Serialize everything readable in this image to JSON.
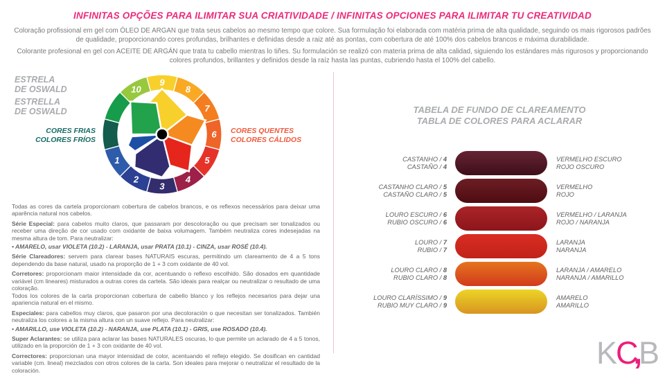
{
  "title": "INFINITAS OPÇÕES PARA ILIMITAR SUA CRIATIVIDADE / INFINITAS OPCIONES PARA ILIMITAR TU CREATIVIDAD",
  "title_color": "#ec2a7c",
  "intro": {
    "pt": "Coloração profissional em gel com ÓLEO DE ARGAN que trata seus cabelos ao mesmo tempo que colore. Sua formulação foi elaborada com matéria prima de alta qualidade, seguindo os mais rigorosos padrões de qualidade, proporcionando cores profundas, brilhantes e definidas desde a raiz até as pontas, com cobertura de até 100% dos cabelos brancos e máxima durabilidade.",
    "es": "Colorante profesional en gel con ACEITE DE ARGÁN que trata tu cabello mientras lo tiñes. Su formulación se realizó con materia prima de alta calidad, siguiendo los estándares más rigurosos y proporcionando colores profundos, brillantes y definidos desde la raíz hasta las puntas, cubriendo hasta el 100% del cabello."
  },
  "wheel": {
    "heading_pt": [
      "ESTRELA",
      "DE OSWALD"
    ],
    "heading_es": [
      "ESTRELLA",
      "DE OSWALD"
    ],
    "cool": {
      "pt": "CORES FRIAS",
      "es": "COLORES FRÍOS",
      "color": "#156a64"
    },
    "warm": {
      "pt": "CORES QUENTES",
      "es": "COLORES CÁLIDOS",
      "color": "#f0583a"
    },
    "segments": [
      {
        "label": "9",
        "color": "#f8d02c"
      },
      {
        "label": "8",
        "color": "#f9a924"
      },
      {
        "label": "7",
        "color": "#f47d20"
      },
      {
        "label": "6",
        "color": "#ef6428"
      },
      {
        "label": "5",
        "color": "#e6332a"
      },
      {
        "label": "4",
        "color": "#9c2048"
      },
      {
        "label": "3",
        "color": "#332c6d"
      },
      {
        "label": "2",
        "color": "#2c4094"
      },
      {
        "label": "1",
        "color": "#2e5caa"
      },
      {
        "label": "",
        "color": "#145c4d"
      },
      {
        "label": "",
        "color": "#169c4a"
      },
      {
        "label": "10",
        "color": "#97c83e"
      }
    ],
    "star": {
      "green": "#22a24b",
      "yellow": "#f8d02c",
      "orange": "#f58a20",
      "red": "#e6251c",
      "blue": "#1d4fa5",
      "navy": "#312d70"
    }
  },
  "table": {
    "heading": [
      "TABELA DE FUNDO DE CLAREAMENTO",
      "TABLA DE COLORES PARA ACLARAR"
    ],
    "rows": [
      {
        "left": [
          "CASTANHO / 4",
          "CASTAÑO / 4"
        ],
        "right": [
          "VERMELHO ESCURO",
          "ROJO OSCURO"
        ],
        "colors": [
          "#652434",
          "#3f0e1a"
        ]
      },
      {
        "left": [
          "CASTANHO CLARO / 5",
          "CASTAÑO CLARO / 5"
        ],
        "right": [
          "VERMELHO",
          "ROJO"
        ],
        "colors": [
          "#6d1d24",
          "#4e0c12"
        ]
      },
      {
        "left": [
          "LOURO ESCURO / 6",
          "RUBIO OSCURO / 6"
        ],
        "right": [
          "VERMELHO / LARANJA",
          "ROJO / NARANJA"
        ],
        "colors": [
          "#ab2428",
          "#8c161b"
        ]
      },
      {
        "left": [
          "LOURO / 7",
          "RUBIO / 7"
        ],
        "right": [
          "LARANJA",
          "NARANJA"
        ],
        "colors": [
          "#da2d22",
          "#c1221a"
        ]
      },
      {
        "left": [
          "LOURO CLARO / 8",
          "RUBIO CLARO / 8"
        ],
        "right": [
          "LARANJA / AMARELO",
          "NARANJA / AMARILLO"
        ],
        "colors": [
          "#e4741f",
          "#d23a1c"
        ]
      },
      {
        "left": [
          "LOURO CLARÍSSIMO / 9",
          "RUBIO MUY CLARO / 9"
        ],
        "right": [
          "AMARELO",
          "AMARILLO"
        ],
        "colors": [
          "#ecd526",
          "#d89420"
        ]
      }
    ]
  },
  "notes_pt": [
    {
      "lead": "",
      "text": "Todas as cores da cartela proporcionam cobertura de cabelos brancos, e os reflexos necessários para deixar uma aparência natural nos cabelos."
    },
    {
      "lead": "Série Especial:",
      "text": "para cabelos muito claros, que passaram por descoloração ou que precisam ser tonalizados ou receber uma direção de cor usado com oxidante de baixa volumagem. Também neutraliza cores indesejadas na mesma altura de tom. Para neutralizar:"
    },
    {
      "bullet": true,
      "text": "• AMARELO, usar VIOLETA (10.2) - LARANJA, usar PRATA (10.1) - CINZA, usar ROSÉ (10.4)."
    },
    {
      "lead": "Série Clareadores:",
      "text": "servem para clarear bases NATURAIS escuras, permitindo um clareamento de 4 a 5 tons dependendo da base natural, usado na proporção de 1 + 3 com oxidante de 40 vol."
    },
    {
      "lead": "Corretores:",
      "text": "proporcionam maior intensidade da cor, acentuando o reflexo escolhido. São dosados em quantidade variável (cm lineares) misturados a outras cores da cartela. São ideais para realçar ou neutralizar o resultado de uma coloração."
    }
  ],
  "notes_es": [
    {
      "lead": "",
      "text": "Todos los colores de la carta proporcionan cobertura de cabello blanco y los reflejos necesarios para dejar una apariencia natural en el mismo."
    },
    {
      "lead": "Especiales:",
      "text": "para cabellos muy claros, que pasaron por una decoloración o que necesitan ser tonalizados. También neutraliza los colores a la misma altura con un suave reflejo. Para neutralizar:"
    },
    {
      "bullet": true,
      "text": "• AMARILLO, use VIOLETA (10.2) - NARANJA, use PLATA (10.1) - GRIS, use ROSADO (10.4)."
    },
    {
      "lead": "Super Aclarantes:",
      "text": "se utiliza para aclarar las bases NATURALES oscuras, lo que permite un aclarado de 4 a 5 tonos, utilizado en la proporción de 1 + 3 con oxidante de 40 vol."
    },
    {
      "lead": "Correctores:",
      "text": "proporcionan una mayor intensidad de color, acentuando el reflejo elegido. Se dosifican en cantidad variable (cm. lineal) mezclados con otros colores de la carta. Son ideales para mejorar o neutralizar el resultado de la coloración."
    }
  ],
  "logo": {
    "k": "K",
    "c": "C",
    "comma": ",",
    "b": "B",
    "pink": "#ec1e79",
    "gray": "#b7b9bc"
  }
}
